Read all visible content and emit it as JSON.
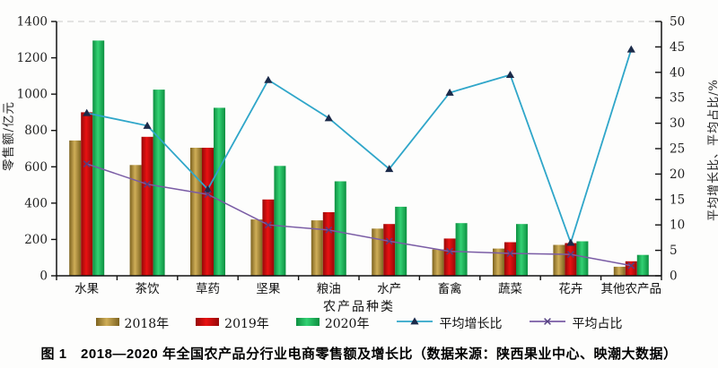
{
  "figure": {
    "caption": "图 1　2018—2020 年全国农产品分行业电商零售额及增长比（数据来源：陕西果业中心、映潮大数据）"
  },
  "chart_data": {
    "type": "bar+line combo",
    "title": "",
    "xlabel": "农产品种类",
    "ylabel_left": "零售额/亿元",
    "ylabel_right": "平均增长比、平均占比/%",
    "ylim_left": [
      0,
      1400
    ],
    "yticks_left": [
      0,
      200,
      400,
      600,
      800,
      1000,
      1200,
      1400
    ],
    "ylim_right": [
      0,
      50
    ],
    "yticks_right": [
      0,
      5,
      10,
      15,
      20,
      25,
      30,
      35,
      40,
      45,
      50
    ],
    "grid": false,
    "legend_position": "bottom",
    "categories": [
      "水果",
      "茶饮",
      "草药",
      "坚果",
      "粮油",
      "水产",
      "畜禽",
      "蔬菜",
      "花卉",
      "其他农产品"
    ],
    "bar_series": [
      {
        "name": "2018年",
        "color": "#b3913a",
        "gradient": [
          "#7d6320",
          "#cfae58"
        ],
        "values": [
          745,
          610,
          705,
          310,
          305,
          260,
          145,
          150,
          170,
          50
        ]
      },
      {
        "name": "2019年",
        "color": "#cc0a0a",
        "gradient": [
          "#960808",
          "#e81212"
        ],
        "values": [
          900,
          765,
          705,
          420,
          350,
          285,
          205,
          185,
          180,
          80
        ]
      },
      {
        "name": "2020年",
        "color": "#1cab53",
        "gradient": [
          "#0c8f40",
          "#33d173"
        ],
        "values": [
          1295,
          1025,
          925,
          605,
          520,
          380,
          290,
          285,
          190,
          115
        ]
      }
    ],
    "line_series": [
      {
        "name": "平均增长比",
        "axis": "right",
        "color": "#2fa6c9",
        "marker": "triangle",
        "marker_color": "#1b2a49",
        "values": [
          32,
          29.5,
          17,
          38.5,
          31,
          21,
          36,
          39.5,
          6.5,
          44.5
        ]
      },
      {
        "name": "平均占比",
        "axis": "right",
        "color": "#7a5ca5",
        "marker": "x",
        "marker_color": "#533f80",
        "values": [
          22,
          18,
          16,
          10,
          9,
          6.8,
          4.8,
          4.4,
          4.2,
          2
        ]
      }
    ]
  }
}
